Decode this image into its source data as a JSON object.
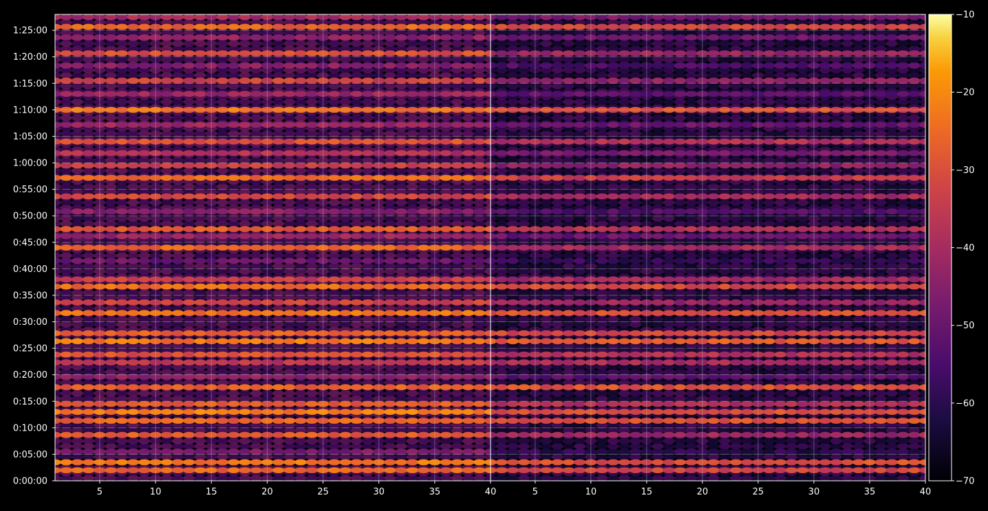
{
  "chart_data": {
    "type": "heatmap",
    "title": "",
    "xlabel": "",
    "ylabel": "",
    "grid": true,
    "colormap": "inferno",
    "background": "#000000",
    "panels": [
      {
        "xlim": [
          1,
          40
        ],
        "xticks": [
          5,
          10,
          15,
          20,
          25,
          30,
          35,
          40
        ]
      },
      {
        "xlim": [
          1,
          40
        ],
        "xticks": [
          5,
          10,
          15,
          20,
          25,
          30,
          35,
          40
        ]
      }
    ],
    "ylim_seconds": [
      0,
      5280
    ],
    "yticks": [
      {
        "seconds": 0,
        "label": "0:00:00"
      },
      {
        "seconds": 300,
        "label": "0:05:00"
      },
      {
        "seconds": 600,
        "label": "0:10:00"
      },
      {
        "seconds": 900,
        "label": "0:15:00"
      },
      {
        "seconds": 1200,
        "label": "0:20:00"
      },
      {
        "seconds": 1500,
        "label": "0:25:00"
      },
      {
        "seconds": 1800,
        "label": "0:30:00"
      },
      {
        "seconds": 2100,
        "label": "0:35:00"
      },
      {
        "seconds": 2400,
        "label": "0:40:00"
      },
      {
        "seconds": 2700,
        "label": "0:45:00"
      },
      {
        "seconds": 3000,
        "label": "0:50:00"
      },
      {
        "seconds": 3300,
        "label": "0:55:00"
      },
      {
        "seconds": 3600,
        "label": "1:00:00"
      },
      {
        "seconds": 3900,
        "label": "1:05:00"
      },
      {
        "seconds": 4200,
        "label": "1:10:00"
      },
      {
        "seconds": 4500,
        "label": "1:15:00"
      },
      {
        "seconds": 4800,
        "label": "1:20:00"
      },
      {
        "seconds": 5100,
        "label": "1:25:00"
      }
    ],
    "colorbar": {
      "range": [
        -70,
        -10
      ],
      "ticks": [
        -10,
        -20,
        -30,
        -40,
        -50,
        -60,
        -70
      ],
      "tick_labels": [
        "−10",
        "−20",
        "−30",
        "−40",
        "−50",
        "−60",
        "−70"
      ]
    },
    "bands": [
      {
        "t": 120,
        "left": -26,
        "right": -32
      },
      {
        "t": 210,
        "left": -23,
        "right": -30
      },
      {
        "t": 330,
        "left": -47,
        "right": -60
      },
      {
        "t": 520,
        "left": -28,
        "right": -42
      },
      {
        "t": 680,
        "left": -26,
        "right": -30
      },
      {
        "t": 780,
        "left": -22,
        "right": -30
      },
      {
        "t": 870,
        "left": -28,
        "right": -38
      },
      {
        "t": 1060,
        "left": -27,
        "right": -30
      },
      {
        "t": 1180,
        "left": -44,
        "right": -52
      },
      {
        "t": 1340,
        "left": -36,
        "right": -40
      },
      {
        "t": 1430,
        "left": -30,
        "right": -38
      },
      {
        "t": 1580,
        "left": -23,
        "right": -28
      },
      {
        "t": 1670,
        "left": -27,
        "right": -32
      },
      {
        "t": 1900,
        "left": -24,
        "right": -30
      },
      {
        "t": 2020,
        "left": -33,
        "right": -42
      },
      {
        "t": 2200,
        "left": -25,
        "right": -31
      },
      {
        "t": 2280,
        "left": -34,
        "right": -40
      },
      {
        "t": 2490,
        "left": -50,
        "right": -58
      },
      {
        "t": 2640,
        "left": -26,
        "right": -40
      },
      {
        "t": 2770,
        "left": -42,
        "right": -50
      },
      {
        "t": 2850,
        "left": -28,
        "right": -38
      },
      {
        "t": 3050,
        "left": -45,
        "right": -54
      },
      {
        "t": 3220,
        "left": -32,
        "right": -40
      },
      {
        "t": 3430,
        "left": -25,
        "right": -34
      },
      {
        "t": 3570,
        "left": -34,
        "right": -44
      },
      {
        "t": 3710,
        "left": -38,
        "right": -48
      },
      {
        "t": 3840,
        "left": -30,
        "right": -38
      },
      {
        "t": 4030,
        "left": -42,
        "right": -50
      },
      {
        "t": 4200,
        "left": -24,
        "right": -30
      },
      {
        "t": 4380,
        "left": -42,
        "right": -52
      },
      {
        "t": 4530,
        "left": -33,
        "right": -44
      },
      {
        "t": 4700,
        "left": -45,
        "right": -55
      },
      {
        "t": 4840,
        "left": -30,
        "right": -42
      },
      {
        "t": 5020,
        "left": -44,
        "right": -50
      },
      {
        "t": 5140,
        "left": -26,
        "right": -32
      },
      {
        "t": 5250,
        "left": -40,
        "right": -48
      }
    ]
  }
}
